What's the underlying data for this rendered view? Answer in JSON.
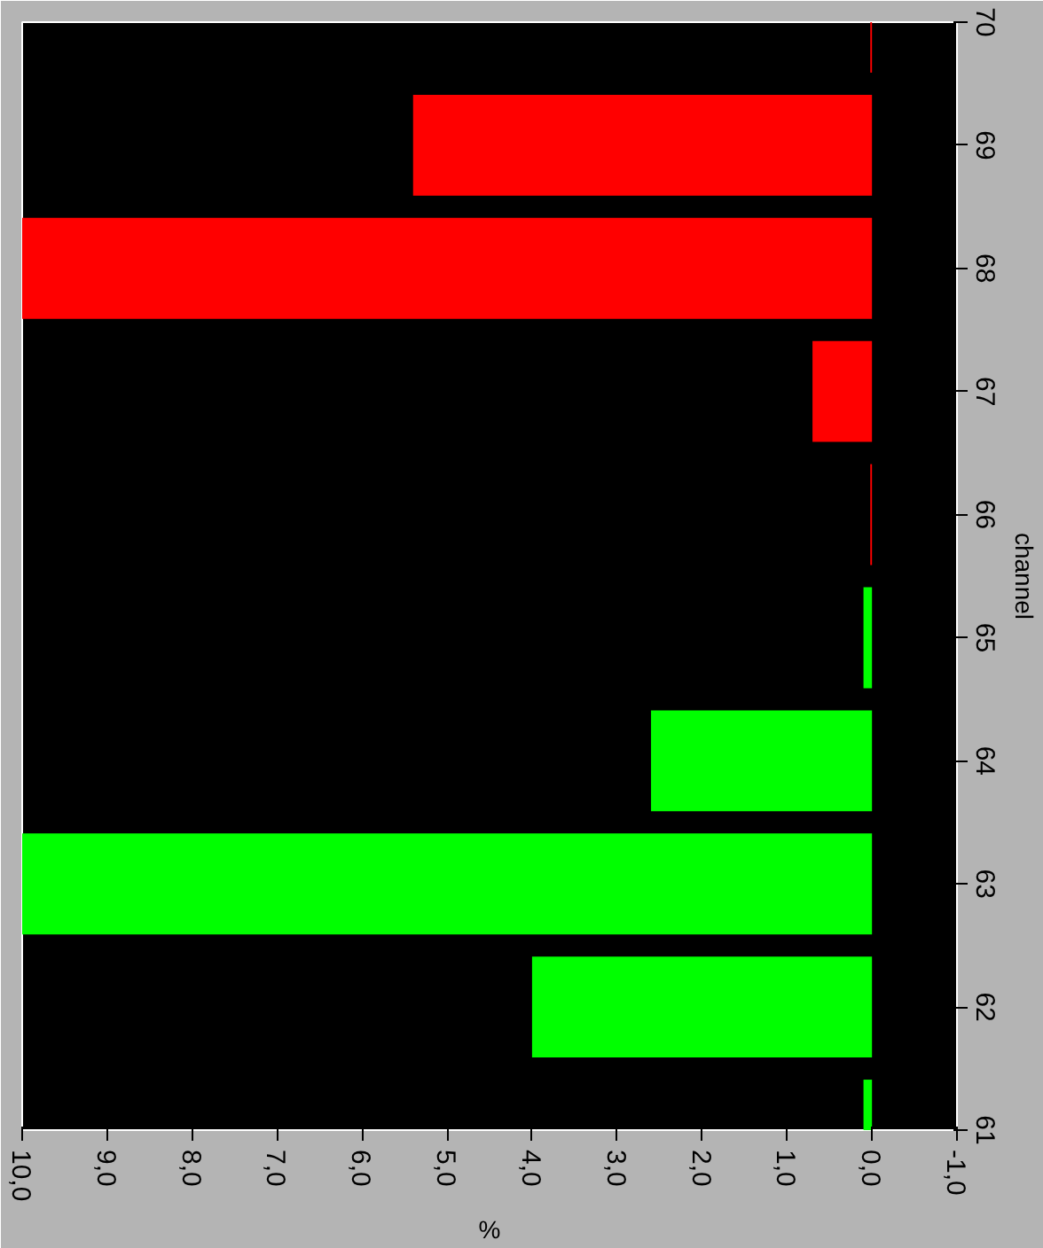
{
  "chart_data": {
    "type": "bar",
    "orientation": "horizontal",
    "xlabel": "%",
    "ylabel": "channel",
    "categories": [
      "70",
      "69",
      "68",
      "67",
      "66",
      "65",
      "64",
      "63",
      "62",
      "61"
    ],
    "values": [
      0.02,
      5.4,
      10.0,
      0.7,
      0.02,
      0.1,
      2.6,
      10.0,
      4.0,
      0.1
    ],
    "colors": [
      "#ff0000",
      "#ff0000",
      "#ff0000",
      "#ff0000",
      "#ff0000",
      "#00ff00",
      "#00ff00",
      "#00ff00",
      "#00ff00",
      "#00ff00"
    ],
    "xlim": [
      10,
      -1
    ],
    "xticks": [
      {
        "value": 10,
        "label": "10,0"
      },
      {
        "value": 9,
        "label": "9,0"
      },
      {
        "value": 8,
        "label": "8,0"
      },
      {
        "value": 7,
        "label": "7,0"
      },
      {
        "value": 6,
        "label": "6,0"
      },
      {
        "value": 5,
        "label": "5,0"
      },
      {
        "value": 4,
        "label": "4,0"
      },
      {
        "value": 3,
        "label": "3,0"
      },
      {
        "value": 2,
        "label": "2,0"
      },
      {
        "value": 1,
        "label": "1,0"
      },
      {
        "value": 0,
        "label": "0,0"
      },
      {
        "value": -1,
        "label": "-1,0"
      }
    ],
    "grid": false
  }
}
